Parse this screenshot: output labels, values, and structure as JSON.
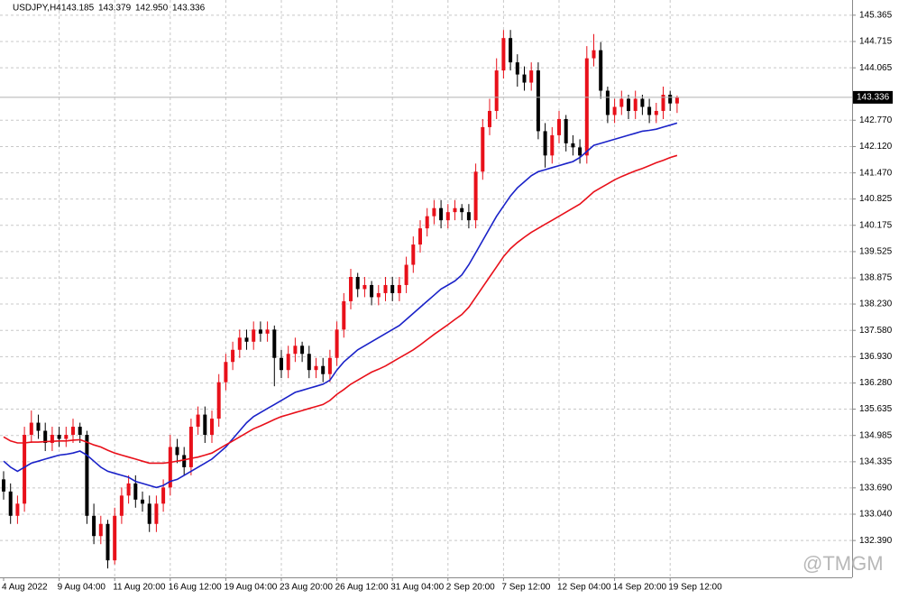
{
  "chart_data": {
    "type": "candlestick",
    "title": "USDJPY,H4",
    "title_ohlc": [
      "143.185",
      "143.379",
      "142.950",
      "143.336"
    ],
    "watermark": "@TMGM",
    "up_color": "#e8101a",
    "down_color": "#000000",
    "grid": true,
    "ylim": [
      131.48,
      145.74
    ],
    "yticks": [
      145.365,
      144.715,
      144.065,
      {
        "value": 142.77,
        "label": "142.770"
      },
      {
        "value": 142.12,
        "label": "142.120"
      },
      {
        "value": 141.47,
        "label": "141.470"
      },
      140.825,
      140.175,
      139.525,
      138.875,
      {
        "value": 138.23,
        "label": "138.230"
      },
      {
        "value": 137.58,
        "label": "137.580"
      },
      {
        "value": 136.93,
        "label": "136.930"
      },
      {
        "value": 136.28,
        "label": "136.280"
      },
      135.635,
      134.985,
      134.335,
      {
        "value": 133.69,
        "label": "133.690"
      },
      {
        "value": 133.04,
        "label": "133.040"
      },
      {
        "value": 132.39,
        "label": "132.390"
      }
    ],
    "current_price": {
      "value": 143.336,
      "label": "143.336"
    },
    "categories": [
      "4 Aug 2022",
      null,
      null,
      null,
      null,
      null,
      null,
      null,
      "9 Aug 04:00",
      null,
      null,
      null,
      null,
      null,
      null,
      null,
      "11 Aug 20:00",
      null,
      null,
      null,
      null,
      null,
      null,
      null,
      "16 Aug 12:00",
      null,
      null,
      null,
      null,
      null,
      null,
      null,
      "19 Aug 04:00",
      null,
      null,
      null,
      null,
      null,
      null,
      null,
      "23 Aug 20:00",
      null,
      null,
      null,
      null,
      null,
      null,
      null,
      "26 Aug 12:00",
      null,
      null,
      null,
      null,
      null,
      null,
      null,
      "31 Aug 04:00",
      null,
      null,
      null,
      null,
      null,
      null,
      null,
      "2 Sep 20:00",
      null,
      null,
      null,
      null,
      null,
      null,
      null,
      "7 Sep 12:00",
      null,
      null,
      null,
      null,
      null,
      null,
      null,
      "12 Sep 04:00",
      null,
      null,
      null,
      null,
      null,
      null,
      null,
      "14 Sep 20:00",
      null,
      null,
      null,
      null,
      null,
      null,
      null,
      "19 Sep 12:00",
      null
    ],
    "open": [
      133.9,
      133.6,
      133.0,
      133.3,
      135.0,
      135.3,
      135.1,
      134.8,
      135.0,
      134.9,
      135.0,
      135.2,
      135.0,
      133.0,
      132.5,
      132.8,
      131.9,
      133.0,
      133.5,
      133.8,
      133.4,
      133.3,
      132.8,
      133.3,
      133.7,
      134.7,
      134.5,
      134.2,
      135.2,
      135.5,
      135.0,
      135.4,
      136.3,
      136.8,
      137.1,
      137.4,
      137.3,
      137.6,
      137.5,
      137.6,
      136.9,
      136.6,
      137.0,
      137.2,
      137.0,
      136.6,
      136.7,
      136.5,
      136.9,
      137.6,
      138.3,
      138.9,
      138.6,
      138.7,
      138.4,
      138.5,
      138.7,
      138.5,
      138.7,
      139.2,
      139.7,
      140.1,
      140.4,
      140.6,
      140.3,
      140.5,
      140.6,
      140.5,
      140.3,
      141.5,
      142.6,
      143.0,
      144.0,
      144.8,
      144.2,
      143.9,
      143.7,
      144.0,
      142.5,
      141.9,
      142.4,
      142.8,
      142.2,
      142.1,
      141.9,
      144.3,
      144.5,
      143.5,
      142.9,
      143.1,
      143.3,
      143.0,
      143.3,
      143.1,
      142.9,
      143.0,
      143.4,
      143.185
    ],
    "high": [
      134.1,
      133.8,
      133.5,
      135.2,
      135.6,
      135.5,
      135.3,
      135.2,
      135.2,
      135.2,
      135.4,
      135.3,
      135.1,
      133.3,
      133.0,
      132.9,
      133.2,
      133.7,
      134.0,
      134.0,
      133.6,
      133.5,
      133.5,
      133.9,
      135.0,
      134.9,
      134.7,
      135.4,
      135.7,
      135.7,
      135.6,
      136.5,
      137.0,
      137.3,
      137.6,
      137.6,
      137.8,
      137.8,
      137.8,
      137.7,
      137.1,
      137.2,
      137.4,
      137.3,
      137.2,
      136.9,
      136.9,
      137.1,
      137.8,
      138.5,
      139.1,
      139.0,
      138.9,
      138.8,
      138.7,
      138.9,
      138.9,
      138.9,
      139.4,
      139.9,
      140.3,
      140.6,
      140.8,
      140.8,
      140.7,
      140.8,
      140.7,
      140.7,
      141.7,
      142.8,
      143.3,
      144.3,
      145.0,
      145.0,
      144.4,
      144.1,
      144.2,
      144.2,
      142.7,
      142.6,
      143.0,
      142.9,
      142.4,
      142.3,
      144.6,
      144.9,
      144.7,
      143.6,
      143.3,
      143.5,
      143.4,
      143.5,
      143.4,
      143.3,
      143.2,
      143.6,
      143.5,
      143.379
    ],
    "low": [
      133.4,
      132.8,
      132.8,
      133.1,
      134.8,
      134.9,
      134.6,
      134.6,
      134.7,
      134.7,
      134.8,
      134.8,
      132.8,
      132.3,
      132.3,
      131.7,
      131.8,
      132.8,
      133.3,
      133.2,
      133.1,
      132.6,
      132.6,
      133.1,
      133.5,
      134.3,
      134.0,
      134.0,
      135.0,
      134.8,
      134.8,
      135.2,
      136.1,
      136.6,
      136.9,
      137.1,
      137.1,
      137.3,
      137.3,
      136.2,
      136.4,
      136.4,
      136.8,
      136.8,
      136.4,
      136.4,
      136.3,
      136.3,
      136.7,
      137.4,
      138.1,
      138.4,
      138.4,
      138.2,
      138.2,
      138.3,
      138.3,
      138.3,
      138.5,
      139.0,
      139.5,
      139.9,
      140.2,
      140.1,
      140.1,
      140.3,
      140.3,
      140.1,
      140.1,
      141.3,
      142.4,
      142.8,
      143.8,
      144.0,
      143.6,
      143.5,
      143.5,
      142.3,
      141.6,
      141.7,
      142.2,
      142.0,
      141.9,
      141.7,
      141.7,
      144.1,
      143.3,
      142.7,
      142.7,
      142.9,
      142.8,
      142.8,
      142.9,
      142.7,
      142.7,
      142.8,
      143.0,
      142.95
    ],
    "close": [
      133.6,
      133.0,
      133.3,
      135.0,
      135.3,
      135.1,
      134.8,
      135.0,
      134.9,
      135.0,
      135.2,
      135.0,
      133.0,
      132.5,
      132.8,
      131.9,
      133.0,
      133.5,
      133.8,
      133.4,
      133.3,
      132.8,
      133.3,
      133.7,
      134.7,
      134.5,
      134.2,
      135.2,
      135.5,
      135.0,
      135.4,
      136.3,
      136.8,
      137.1,
      137.4,
      137.3,
      137.6,
      137.5,
      137.6,
      136.9,
      136.6,
      137.0,
      137.2,
      137.0,
      136.6,
      136.7,
      136.5,
      136.9,
      137.6,
      138.3,
      138.9,
      138.6,
      138.7,
      138.4,
      138.5,
      138.7,
      138.5,
      138.7,
      139.2,
      139.7,
      140.1,
      140.4,
      140.6,
      140.3,
      140.5,
      140.6,
      140.5,
      140.3,
      141.5,
      142.6,
      143.0,
      144.0,
      144.8,
      144.2,
      143.9,
      143.7,
      144.0,
      142.5,
      141.9,
      142.4,
      142.8,
      142.2,
      142.1,
      141.9,
      144.3,
      144.5,
      143.5,
      142.9,
      143.1,
      143.3,
      143.0,
      143.3,
      143.1,
      142.9,
      143.0,
      143.4,
      143.185,
      143.336
    ],
    "overlays": [
      {
        "color": "#1a22c8",
        "values": [
          134.35,
          134.2,
          134.1,
          134.2,
          134.3,
          134.35,
          134.4,
          134.45,
          134.5,
          134.52,
          134.55,
          134.6,
          134.5,
          134.35,
          134.2,
          134.1,
          134.05,
          134.0,
          133.95,
          133.85,
          133.8,
          133.75,
          133.7,
          133.75,
          133.85,
          133.9,
          134.0,
          134.1,
          134.2,
          134.3,
          134.4,
          134.55,
          134.7,
          134.9,
          135.1,
          135.3,
          135.45,
          135.55,
          135.65,
          135.75,
          135.85,
          135.95,
          136.05,
          136.1,
          136.15,
          136.2,
          136.25,
          136.35,
          136.6,
          136.8,
          136.95,
          137.1,
          137.2,
          137.3,
          137.4,
          137.5,
          137.6,
          137.7,
          137.85,
          138.0,
          138.15,
          138.3,
          138.45,
          138.6,
          138.7,
          138.8,
          138.95,
          139.2,
          139.5,
          139.8,
          140.1,
          140.4,
          140.65,
          140.9,
          141.1,
          141.25,
          141.4,
          141.5,
          141.55,
          141.6,
          141.65,
          141.7,
          141.75,
          141.85,
          142.0,
          142.15,
          142.2,
          142.25,
          142.3,
          142.35,
          142.4,
          142.45,
          142.5,
          142.52,
          142.55,
          142.6,
          142.65,
          142.7
        ]
      },
      {
        "color": "#e8101a",
        "values": [
          134.95,
          134.85,
          134.8,
          134.8,
          134.82,
          134.82,
          134.83,
          134.84,
          134.85,
          134.85,
          134.87,
          134.88,
          134.82,
          134.75,
          134.7,
          134.62,
          134.55,
          134.5,
          134.45,
          134.4,
          134.35,
          134.3,
          134.3,
          134.3,
          134.32,
          134.35,
          134.38,
          134.42,
          134.45,
          134.5,
          134.55,
          134.65,
          134.75,
          134.85,
          134.95,
          135.05,
          135.15,
          135.22,
          135.3,
          135.38,
          135.45,
          135.5,
          135.55,
          135.6,
          135.65,
          135.7,
          135.75,
          135.85,
          136.0,
          136.12,
          136.25,
          136.35,
          136.45,
          136.55,
          136.62,
          136.7,
          136.8,
          136.9,
          137.0,
          137.1,
          137.22,
          137.35,
          137.48,
          137.6,
          137.72,
          137.85,
          137.97,
          138.15,
          138.4,
          138.65,
          138.9,
          139.15,
          139.4,
          139.6,
          139.75,
          139.88,
          140.0,
          140.1,
          140.2,
          140.3,
          140.4,
          140.5,
          140.6,
          140.7,
          140.85,
          141.0,
          141.1,
          141.2,
          141.3,
          141.38,
          141.45,
          141.52,
          141.58,
          141.65,
          141.72,
          141.78,
          141.85,
          141.9
        ]
      }
    ]
  }
}
